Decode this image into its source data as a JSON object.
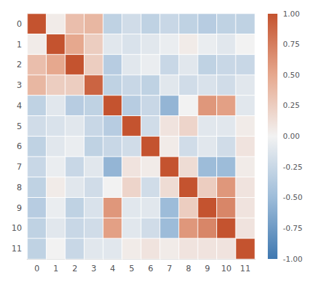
{
  "chart_data": {
    "type": "heatmap",
    "matrix": [
      [
        1.0,
        0.05,
        0.35,
        0.4,
        -0.3,
        -0.2,
        -0.3,
        -0.25,
        -0.3,
        -0.35,
        -0.3,
        -0.3
      ],
      [
        0.05,
        1.0,
        0.5,
        0.25,
        -0.1,
        -0.15,
        -0.1,
        -0.05,
        0.05,
        -0.05,
        -0.1,
        0.0
      ],
      [
        0.35,
        0.5,
        1.0,
        0.25,
        -0.35,
        -0.1,
        -0.05,
        -0.25,
        -0.1,
        -0.3,
        -0.25,
        -0.25
      ],
      [
        0.4,
        0.25,
        0.25,
        0.9,
        -0.3,
        -0.25,
        -0.3,
        -0.1,
        -0.2,
        -0.15,
        -0.2,
        -0.1
      ],
      [
        -0.3,
        -0.1,
        -0.35,
        -0.3,
        1.0,
        -0.35,
        -0.25,
        -0.55,
        0.0,
        0.6,
        0.55,
        -0.1
      ],
      [
        -0.2,
        -0.15,
        -0.1,
        -0.25,
        -0.35,
        1.0,
        -0.2,
        0.1,
        0.2,
        -0.1,
        -0.1,
        0.05
      ],
      [
        -0.3,
        -0.1,
        -0.05,
        -0.3,
        -0.25,
        -0.2,
        1.0,
        0.05,
        -0.2,
        -0.1,
        -0.2,
        0.1
      ],
      [
        -0.25,
        -0.05,
        -0.25,
        -0.1,
        -0.55,
        0.1,
        0.05,
        1.0,
        0.15,
        -0.5,
        -0.5,
        0.05
      ],
      [
        -0.3,
        0.05,
        -0.1,
        -0.2,
        0.0,
        0.2,
        -0.2,
        0.15,
        1.0,
        0.25,
        0.6,
        0.1
      ],
      [
        -0.35,
        -0.05,
        -0.3,
        -0.15,
        0.6,
        -0.1,
        -0.1,
        -0.5,
        0.25,
        1.0,
        0.7,
        0.1
      ],
      [
        -0.3,
        -0.1,
        -0.25,
        -0.2,
        0.55,
        -0.1,
        -0.2,
        -0.5,
        0.6,
        0.7,
        1.0,
        0.1
      ],
      [
        -0.3,
        0.0,
        -0.25,
        -0.1,
        -0.1,
        0.05,
        0.1,
        0.05,
        0.1,
        0.1,
        0.1,
        1.0
      ]
    ],
    "xticks": [
      0,
      1,
      2,
      3,
      4,
      5,
      6,
      7,
      8,
      9,
      10,
      11
    ],
    "yticks": [
      0,
      1,
      2,
      3,
      4,
      5,
      6,
      7,
      8,
      9,
      10,
      11
    ],
    "colorbar_range": [
      -1.0,
      1.0
    ],
    "colorbar_ticks": [
      {
        "value": 1.0,
        "label": "1.00"
      },
      {
        "value": 0.75,
        "label": "0.75"
      },
      {
        "value": 0.5,
        "label": "0.50"
      },
      {
        "value": 0.25,
        "label": "0.25"
      },
      {
        "value": 0.0,
        "label": "0.00"
      },
      {
        "value": -0.25,
        "label": "-0.25"
      },
      {
        "value": -0.5,
        "label": "-0.50"
      },
      {
        "value": -0.75,
        "label": "-0.75"
      },
      {
        "value": -1.0,
        "label": "-1.00"
      }
    ],
    "grid": false
  }
}
